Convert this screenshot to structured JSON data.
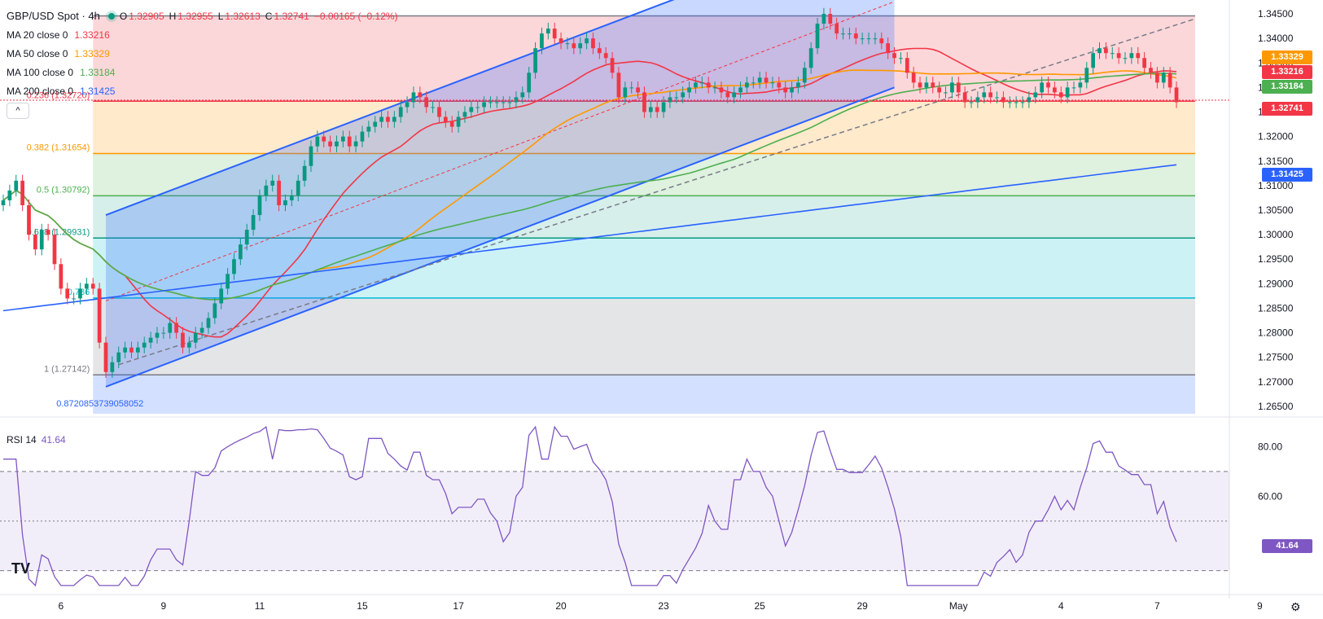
{
  "header": {
    "symbol": "GBP/USD Spot · 4h",
    "open_label": "O",
    "open": "1.32905",
    "high_label": "H",
    "high": "1.32955",
    "low_label": "L",
    "low": "1.32613",
    "close_label": "C",
    "close": "1.32741",
    "change": "−0.00165 (−0.12%)"
  },
  "indicators": [
    {
      "name": "MA 20 close 0",
      "value": "1.33216",
      "color": "#f23645"
    },
    {
      "name": "MA 50 close 0",
      "value": "1.33329",
      "color": "#ff9800"
    },
    {
      "name": "MA 100 close 0",
      "value": "1.33184",
      "color": "#4caf50"
    },
    {
      "name": "MA 200 close 0",
      "value": "1.31425",
      "color": "#2962ff"
    }
  ],
  "collapse_icon": "^",
  "rsi": {
    "label": "RSI 14",
    "value": "41.64",
    "color": "#7e57c2"
  },
  "price_tags": [
    {
      "value": "1.33329",
      "color": "#ff9800"
    },
    {
      "value": "1.33216",
      "color": "#f23645"
    },
    {
      "value": "1.33184",
      "color": "#4caf50"
    },
    {
      "value": "1.32741",
      "color": "#f23645"
    },
    {
      "value": "1.31425",
      "color": "#2962ff"
    },
    {
      "value": "41.64",
      "color": "#7e57c2"
    }
  ],
  "fib_labels": [
    {
      "text": "0.236 (1.32720)",
      "price": 1.3272,
      "color": "#f23645"
    },
    {
      "text": "0.382 (1.31654)",
      "price": 1.31654,
      "color": "#ff9800"
    },
    {
      "text": "0.5 (1.30792)",
      "price": 1.30792,
      "color": "#4caf50"
    },
    {
      "text": "0.618 (1.29931)",
      "price": 1.29931,
      "color": "#089981"
    },
    {
      "text": "0.786",
      "price": 1.2871,
      "color": "#00bcd4"
    },
    {
      "text": "1 (1.27142)",
      "price": 1.27142,
      "color": "#787b86"
    },
    {
      "text": "0.8720853739058052",
      "price": 1.2643,
      "color": "#2962ff"
    }
  ],
  "logo": "TV",
  "settings_icon": "gear-icon",
  "chart_data": {
    "type": "candlestick",
    "title": "GBP/USD Spot · 4h",
    "price_axis": {
      "ticks": [
        1.345,
        1.34,
        1.335,
        1.33,
        1.325,
        1.32,
        1.315,
        1.31,
        1.305,
        1.3,
        1.295,
        1.29,
        1.285,
        1.28,
        1.275,
        1.27,
        1.265
      ],
      "labels": [
        "1.34500",
        "1.34000",
        "1.33500",
        "1.33000",
        "1.32500",
        "1.32000",
        "1.31500",
        "1.31000",
        "1.30500",
        "1.30000",
        "1.29500",
        "1.29000",
        "1.28500",
        "1.28000",
        "1.27500",
        "1.27000",
        "1.26500"
      ],
      "range": [
        1.2635,
        1.3465
      ]
    },
    "rsi_axis": {
      "ticks": [
        80,
        60
      ],
      "labels": [
        "80.00",
        "60.00"
      ],
      "range": [
        22,
        90
      ],
      "bands": [
        70,
        30
      ]
    },
    "time_axis": {
      "labels": [
        "6",
        "9",
        "11",
        "15",
        "17",
        "20",
        "23",
        "25",
        "29",
        "May",
        "4",
        "7",
        "9"
      ],
      "bar_index": [
        9,
        25,
        40,
        56,
        71,
        87,
        103,
        118,
        134,
        149,
        165,
        180,
        196
      ]
    },
    "close": [
      1.307,
      1.309,
      1.311,
      1.306,
      1.3,
      1.297,
      1.301,
      1.3,
      1.294,
      1.289,
      1.287,
      1.287,
      1.289,
      1.29,
      1.289,
      1.278,
      1.272,
      1.274,
      1.276,
      1.277,
      1.276,
      1.277,
      1.278,
      1.279,
      1.28,
      1.28,
      1.282,
      1.28,
      1.277,
      1.278,
      1.28,
      1.281,
      1.283,
      1.286,
      1.289,
      1.292,
      1.295,
      1.298,
      1.301,
      1.304,
      1.308,
      1.31,
      1.311,
      1.306,
      1.307,
      1.308,
      1.311,
      1.314,
      1.318,
      1.32,
      1.319,
      1.318,
      1.319,
      1.32,
      1.318,
      1.319,
      1.321,
      1.322,
      1.323,
      1.324,
      1.323,
      1.324,
      1.326,
      1.327,
      1.329,
      1.328,
      1.326,
      1.326,
      1.324,
      1.323,
      1.322,
      1.324,
      1.325,
      1.326,
      1.326,
      1.327,
      1.327,
      1.327,
      1.327,
      1.327,
      1.328,
      1.329,
      1.333,
      1.338,
      1.341,
      1.342,
      1.34,
      1.339,
      1.339,
      1.338,
      1.339,
      1.34,
      1.338,
      1.337,
      1.336,
      1.333,
      1.328,
      1.33,
      1.33,
      1.329,
      1.325,
      1.326,
      1.325,
      1.327,
      1.328,
      1.328,
      1.329,
      1.33,
      1.331,
      1.331,
      1.33,
      1.33,
      1.329,
      1.328,
      1.329,
      1.33,
      1.331,
      1.331,
      1.332,
      1.331,
      1.331,
      1.33,
      1.329,
      1.33,
      1.331,
      1.334,
      1.338,
      1.343,
      1.345,
      1.343,
      1.341,
      1.341,
      1.341,
      1.34,
      1.34,
      1.34,
      1.34,
      1.339,
      1.337,
      1.336,
      1.336,
      1.333,
      1.331,
      1.33,
      1.331,
      1.33,
      1.329,
      1.329,
      1.331,
      1.329,
      1.327,
      1.327,
      1.328,
      1.329,
      1.328,
      1.328,
      1.327,
      1.327,
      1.327,
      1.327,
      1.328,
      1.329,
      1.331,
      1.33,
      1.329,
      1.328,
      1.33,
      1.33,
      1.331,
      1.334,
      1.337,
      1.338,
      1.337,
      1.337,
      1.336,
      1.336,
      1.337,
      1.336,
      1.334,
      1.333,
      1.331,
      1.333,
      1.33,
      1.327
    ],
    "series": [
      {
        "name": "MA 20 close 0",
        "last": 1.33216
      },
      {
        "name": "MA 50 close 0",
        "last": 1.33329
      },
      {
        "name": "MA 100 close 0",
        "last": 1.33184
      },
      {
        "name": "MA 200 close 0",
        "last": 1.31425
      }
    ],
    "rsi_last": 41.64
  }
}
